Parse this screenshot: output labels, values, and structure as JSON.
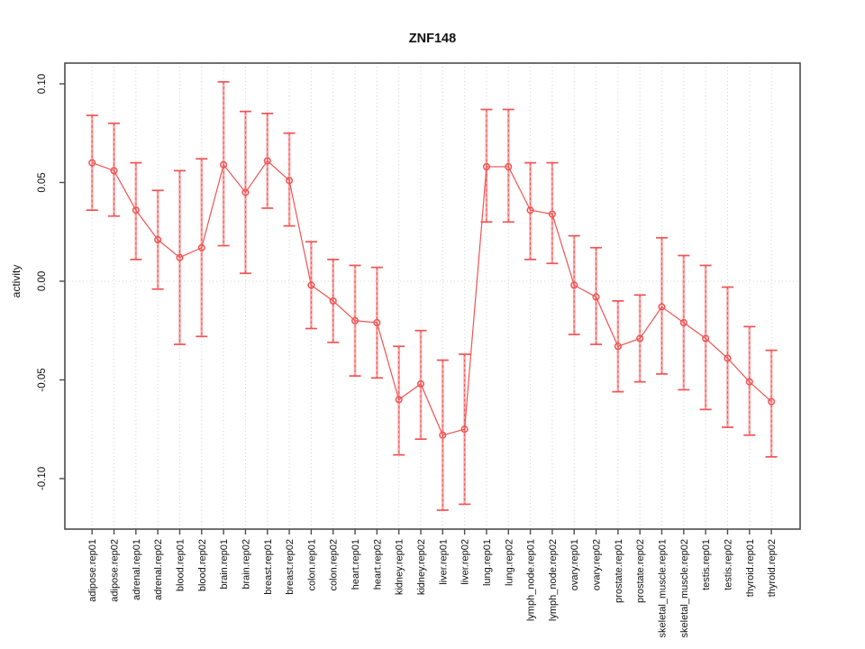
{
  "chart_data": {
    "type": "line",
    "title": "ZNF148",
    "xlabel": "",
    "ylabel": "activity",
    "legend": "none",
    "grid": "dotted vertical line per category; dotted horizontal line at y=0",
    "ylim": [
      -0.1256,
      0.1105
    ],
    "yticks": [
      0.1,
      0.05,
      0.0,
      -0.05,
      -0.1
    ],
    "ytick_labels": [
      "0.10",
      "0.05",
      "0.00",
      "-0.05",
      "-0.10"
    ],
    "categories": [
      "adipose.rep01",
      "adipose.rep02",
      "adrenal.rep01",
      "adrenal.rep02",
      "blood.rep01",
      "blood.rep02",
      "brain.rep01",
      "brain.rep02",
      "breast.rep01",
      "breast.rep02",
      "colon.rep01",
      "colon.rep02",
      "heart.rep01",
      "heart.rep02",
      "kidney.rep01",
      "kidney.rep02",
      "liver.rep01",
      "liver.rep02",
      "lung.rep01",
      "lung.rep02",
      "lymph_node.rep01",
      "lymph_node.rep02",
      "ovary.rep01",
      "ovary.rep02",
      "prostate.rep01",
      "prostate.rep02",
      "skeletal_muscle.rep01",
      "skeletal_muscle.rep02",
      "testis.rep01",
      "testis.rep02",
      "thyroid.rep01",
      "thyroid.rep02"
    ],
    "series": [
      {
        "name": "activity",
        "marker": "open-circle",
        "values": [
          0.06,
          0.056,
          0.036,
          0.021,
          0.012,
          0.017,
          0.059,
          0.045,
          0.061,
          0.051,
          -0.002,
          -0.01,
          -0.02,
          -0.021,
          -0.06,
          -0.052,
          -0.078,
          -0.075,
          0.058,
          0.058,
          0.036,
          0.034,
          -0.002,
          -0.008,
          -0.033,
          -0.029,
          -0.013,
          -0.021,
          -0.029,
          -0.039,
          -0.051,
          -0.061
        ],
        "error_low": [
          0.036,
          0.033,
          0.011,
          -0.004,
          -0.032,
          -0.028,
          0.018,
          0.004,
          0.037,
          0.028,
          -0.024,
          -0.031,
          -0.048,
          -0.049,
          -0.088,
          -0.08,
          -0.116,
          -0.113,
          0.03,
          0.03,
          0.011,
          0.009,
          -0.027,
          -0.032,
          -0.056,
          -0.051,
          -0.047,
          -0.055,
          -0.065,
          -0.074,
          -0.078,
          -0.089
        ],
        "error_high": [
          0.084,
          0.08,
          0.06,
          0.046,
          0.056,
          0.062,
          0.101,
          0.086,
          0.085,
          0.075,
          0.02,
          0.011,
          0.008,
          0.007,
          -0.033,
          -0.025,
          -0.04,
          -0.037,
          0.087,
          0.087,
          0.06,
          0.06,
          0.023,
          0.017,
          -0.01,
          -0.007,
          0.022,
          0.013,
          0.008,
          -0.003,
          -0.023,
          -0.035
        ]
      }
    ],
    "colors": {
      "series_red": "#f25252",
      "error_bar_light": "#f9a8a8",
      "grid": "#d4d4d4",
      "axis": "#4d4d4d",
      "text": "#111111",
      "background": "#ffffff"
    }
  }
}
